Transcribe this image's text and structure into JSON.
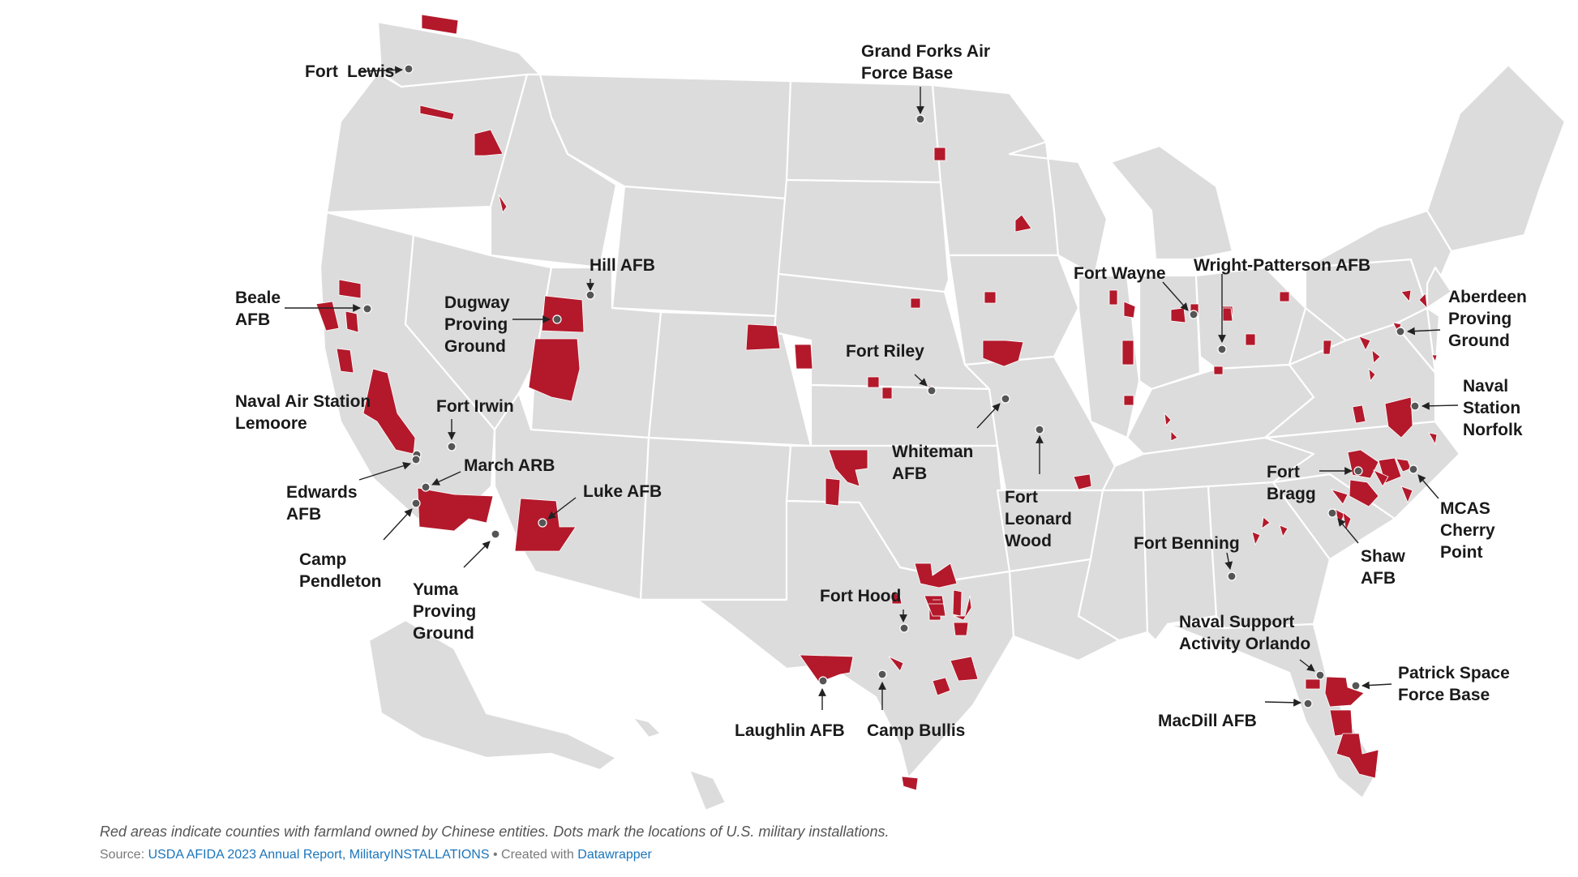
{
  "colors": {
    "land": "#dcdcdc",
    "border": "#ffffff",
    "highlight": "#b3192b",
    "dot": "#555555",
    "link": "#1b75bb"
  },
  "legend_meaning": {
    "highlight_color": "Red areas indicate counties with farmland owned by Chinese entities.",
    "dot": "Dots mark the locations of U.S. military installations."
  },
  "installations": [
    {
      "label": "Fort Lewis",
      "state": "WA"
    },
    {
      "label": "Grand Forks Air Force Base",
      "state": "ND"
    },
    {
      "label": "Hill AFB",
      "state": "UT"
    },
    {
      "label": "Beale AFB",
      "state": "CA"
    },
    {
      "label": "Dugway Proving Ground",
      "state": "UT"
    },
    {
      "label": "Naval Air Station Lemoore",
      "state": "CA"
    },
    {
      "label": "Fort Irwin",
      "state": "CA"
    },
    {
      "label": "March ARB",
      "state": "CA"
    },
    {
      "label": "Edwards AFB",
      "state": "CA"
    },
    {
      "label": "Camp Pendleton",
      "state": "CA"
    },
    {
      "label": "Yuma Proving Ground",
      "state": "AZ"
    },
    {
      "label": "Luke AFB",
      "state": "AZ"
    },
    {
      "label": "Fort Riley",
      "state": "KS"
    },
    {
      "label": "Whiteman AFB",
      "state": "MO"
    },
    {
      "label": "Fort Leonard Wood",
      "state": "MO"
    },
    {
      "label": "Fort Hood",
      "state": "TX"
    },
    {
      "label": "Laughlin AFB",
      "state": "TX"
    },
    {
      "label": "Camp Bullis",
      "state": "TX"
    },
    {
      "label": "Fort Wayne",
      "state": "IN"
    },
    {
      "label": "Wright-Patterson AFB",
      "state": "OH"
    },
    {
      "label": "Aberdeen Proving Ground",
      "state": "MD"
    },
    {
      "label": "Naval Station Norfolk",
      "state": "VA"
    },
    {
      "label": "Fort Bragg",
      "state": "NC"
    },
    {
      "label": "MCAS Cherry Point",
      "state": "NC"
    },
    {
      "label": "Shaw AFB",
      "state": "SC"
    },
    {
      "label": "Fort Benning",
      "state": "GA"
    },
    {
      "label": "Naval Support Activity Orlando",
      "state": "FL"
    },
    {
      "label": "Patrick Space Force Base",
      "state": "FL"
    },
    {
      "label": "MacDill AFB",
      "state": "FL"
    }
  ],
  "footer": {
    "caption": "Red areas indicate counties with farmland owned by Chinese entities. Dots mark the locations of U.S. military installations.",
    "source_prefix": "Source: ",
    "source_link": "USDA AFIDA 2023 Annual Report, MilitaryINSTALLATIONS",
    "created_with": " • Created with ",
    "tool_link": "Datawrapper"
  }
}
